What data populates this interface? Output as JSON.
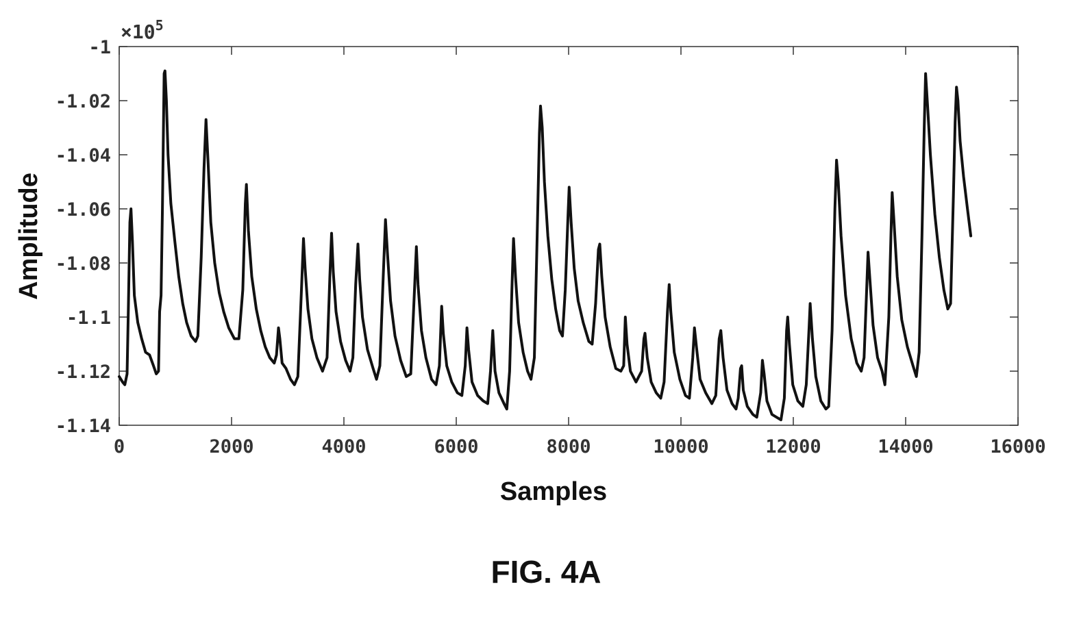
{
  "figure_caption": "FIG. 4A",
  "chart_data": {
    "type": "line",
    "title": "",
    "xlabel": "Samples",
    "ylabel": "Amplitude",
    "y_exponent_label": "×10",
    "y_exponent_power": "5",
    "xlim": [
      0,
      16000
    ],
    "ylim": [
      -1.14,
      -1.0
    ],
    "x_ticks": [
      0,
      2000,
      4000,
      6000,
      8000,
      10000,
      12000,
      14000,
      16000
    ],
    "x_tick_labels": [
      "0",
      "2000",
      "4000",
      "6000",
      "8000",
      "10000",
      "12000",
      "14000",
      "16000"
    ],
    "y_ticks": [
      -1.0,
      -1.02,
      -1.04,
      -1.06,
      -1.08,
      -1.1,
      -1.12,
      -1.14
    ],
    "y_tick_labels": [
      "-1",
      "-1.02",
      "-1.04",
      "-1.06",
      "-1.08",
      "-1.1",
      "-1.12",
      "-1.14"
    ],
    "grid": false,
    "line_color": "#111111",
    "series": [
      {
        "values": [
          [
            0,
            -1.122
          ],
          [
            60,
            -1.124
          ],
          [
            100,
            -1.125
          ],
          [
            140,
            -1.121
          ],
          [
            165,
            -1.095
          ],
          [
            190,
            -1.065
          ],
          [
            210,
            -1.06
          ],
          [
            235,
            -1.072
          ],
          [
            270,
            -1.092
          ],
          [
            330,
            -1.102
          ],
          [
            400,
            -1.108
          ],
          [
            470,
            -1.113
          ],
          [
            540,
            -1.114
          ],
          [
            610,
            -1.118
          ],
          [
            660,
            -1.121
          ],
          [
            700,
            -1.12
          ],
          [
            720,
            -1.098
          ],
          [
            745,
            -1.092
          ],
          [
            770,
            -1.06
          ],
          [
            800,
            -1.01
          ],
          [
            815,
            -1.009
          ],
          [
            840,
            -1.02
          ],
          [
            870,
            -1.04
          ],
          [
            920,
            -1.058
          ],
          [
            990,
            -1.072
          ],
          [
            1060,
            -1.085
          ],
          [
            1130,
            -1.095
          ],
          [
            1200,
            -1.102
          ],
          [
            1280,
            -1.107
          ],
          [
            1360,
            -1.109
          ],
          [
            1400,
            -1.107
          ],
          [
            1460,
            -1.078
          ],
          [
            1510,
            -1.045
          ],
          [
            1545,
            -1.027
          ],
          [
            1580,
            -1.042
          ],
          [
            1630,
            -1.065
          ],
          [
            1700,
            -1.08
          ],
          [
            1780,
            -1.091
          ],
          [
            1860,
            -1.098
          ],
          [
            1950,
            -1.104
          ],
          [
            2050,
            -1.108
          ],
          [
            2130,
            -1.108
          ],
          [
            2200,
            -1.09
          ],
          [
            2245,
            -1.058
          ],
          [
            2265,
            -1.051
          ],
          [
            2300,
            -1.068
          ],
          [
            2360,
            -1.085
          ],
          [
            2440,
            -1.097
          ],
          [
            2520,
            -1.105
          ],
          [
            2600,
            -1.111
          ],
          [
            2680,
            -1.115
          ],
          [
            2760,
            -1.117
          ],
          [
            2800,
            -1.114
          ],
          [
            2835,
            -1.104
          ],
          [
            2860,
            -1.108
          ],
          [
            2900,
            -1.117
          ],
          [
            2970,
            -1.119
          ],
          [
            3050,
            -1.123
          ],
          [
            3120,
            -1.125
          ],
          [
            3180,
            -1.122
          ],
          [
            3240,
            -1.092
          ],
          [
            3280,
            -1.071
          ],
          [
            3310,
            -1.082
          ],
          [
            3360,
            -1.097
          ],
          [
            3430,
            -1.108
          ],
          [
            3520,
            -1.115
          ],
          [
            3620,
            -1.12
          ],
          [
            3700,
            -1.115
          ],
          [
            3750,
            -1.085
          ],
          [
            3780,
            -1.069
          ],
          [
            3810,
            -1.083
          ],
          [
            3860,
            -1.098
          ],
          [
            3940,
            -1.109
          ],
          [
            4030,
            -1.116
          ],
          [
            4110,
            -1.12
          ],
          [
            4160,
            -1.115
          ],
          [
            4210,
            -1.088
          ],
          [
            4250,
            -1.073
          ],
          [
            4280,
            -1.086
          ],
          [
            4330,
            -1.1
          ],
          [
            4420,
            -1.112
          ],
          [
            4520,
            -1.119
          ],
          [
            4580,
            -1.123
          ],
          [
            4640,
            -1.118
          ],
          [
            4700,
            -1.085
          ],
          [
            4740,
            -1.064
          ],
          [
            4775,
            -1.076
          ],
          [
            4830,
            -1.094
          ],
          [
            4910,
            -1.107
          ],
          [
            5010,
            -1.116
          ],
          [
            5110,
            -1.122
          ],
          [
            5190,
            -1.121
          ],
          [
            5250,
            -1.093
          ],
          [
            5290,
            -1.074
          ],
          [
            5320,
            -1.088
          ],
          [
            5380,
            -1.105
          ],
          [
            5460,
            -1.115
          ],
          [
            5560,
            -1.123
          ],
          [
            5640,
            -1.125
          ],
          [
            5700,
            -1.118
          ],
          [
            5740,
            -1.096
          ],
          [
            5770,
            -1.106
          ],
          [
            5830,
            -1.118
          ],
          [
            5920,
            -1.124
          ],
          [
            6020,
            -1.128
          ],
          [
            6100,
            -1.129
          ],
          [
            6160,
            -1.118
          ],
          [
            6190,
            -1.104
          ],
          [
            6220,
            -1.112
          ],
          [
            6280,
            -1.124
          ],
          [
            6380,
            -1.129
          ],
          [
            6480,
            -1.131
          ],
          [
            6560,
            -1.132
          ],
          [
            6610,
            -1.12
          ],
          [
            6650,
            -1.105
          ],
          [
            6690,
            -1.12
          ],
          [
            6760,
            -1.128
          ],
          [
            6850,
            -1.132
          ],
          [
            6900,
            -1.134
          ],
          [
            6950,
            -1.12
          ],
          [
            6990,
            -1.09
          ],
          [
            7020,
            -1.071
          ],
          [
            7055,
            -1.085
          ],
          [
            7110,
            -1.102
          ],
          [
            7190,
            -1.113
          ],
          [
            7270,
            -1.12
          ],
          [
            7330,
            -1.123
          ],
          [
            7390,
            -1.115
          ],
          [
            7440,
            -1.07
          ],
          [
            7480,
            -1.032
          ],
          [
            7500,
            -1.022
          ],
          [
            7530,
            -1.03
          ],
          [
            7570,
            -1.05
          ],
          [
            7630,
            -1.07
          ],
          [
            7700,
            -1.086
          ],
          [
            7770,
            -1.097
          ],
          [
            7840,
            -1.105
          ],
          [
            7890,
            -1.107
          ],
          [
            7940,
            -1.09
          ],
          [
            7990,
            -1.062
          ],
          [
            8010,
            -1.052
          ],
          [
            8045,
            -1.065
          ],
          [
            8100,
            -1.082
          ],
          [
            8170,
            -1.094
          ],
          [
            8260,
            -1.102
          ],
          [
            8360,
            -1.109
          ],
          [
            8420,
            -1.11
          ],
          [
            8480,
            -1.095
          ],
          [
            8530,
            -1.075
          ],
          [
            8555,
            -1.073
          ],
          [
            8590,
            -1.085
          ],
          [
            8650,
            -1.1
          ],
          [
            8740,
            -1.111
          ],
          [
            8840,
            -1.119
          ],
          [
            8930,
            -1.12
          ],
          [
            8980,
            -1.118
          ],
          [
            9010,
            -1.1
          ],
          [
            9040,
            -1.11
          ],
          [
            9100,
            -1.12
          ],
          [
            9200,
            -1.124
          ],
          [
            9300,
            -1.12
          ],
          [
            9340,
            -1.108
          ],
          [
            9360,
            -1.106
          ],
          [
            9400,
            -1.115
          ],
          [
            9470,
            -1.124
          ],
          [
            9560,
            -1.128
          ],
          [
            9640,
            -1.13
          ],
          [
            9700,
            -1.124
          ],
          [
            9760,
            -1.098
          ],
          [
            9790,
            -1.088
          ],
          [
            9820,
            -1.098
          ],
          [
            9880,
            -1.113
          ],
          [
            9980,
            -1.123
          ],
          [
            10080,
            -1.129
          ],
          [
            10150,
            -1.13
          ],
          [
            10210,
            -1.115
          ],
          [
            10240,
            -1.104
          ],
          [
            10275,
            -1.111
          ],
          [
            10340,
            -1.123
          ],
          [
            10440,
            -1.128
          ],
          [
            10550,
            -1.132
          ],
          [
            10620,
            -1.129
          ],
          [
            10680,
            -1.108
          ],
          [
            10710,
            -1.105
          ],
          [
            10750,
            -1.115
          ],
          [
            10820,
            -1.127
          ],
          [
            10910,
            -1.132
          ],
          [
            10980,
            -1.134
          ],
          [
            11020,
            -1.13
          ],
          [
            11060,
            -1.119
          ],
          [
            11080,
            -1.118
          ],
          [
            11110,
            -1.127
          ],
          [
            11180,
            -1.133
          ],
          [
            11280,
            -1.136
          ],
          [
            11350,
            -1.137
          ],
          [
            11420,
            -1.128
          ],
          [
            11450,
            -1.116
          ],
          [
            11480,
            -1.121
          ],
          [
            11530,
            -1.131
          ],
          [
            11620,
            -1.136
          ],
          [
            11700,
            -1.137
          ],
          [
            11780,
            -1.138
          ],
          [
            11840,
            -1.13
          ],
          [
            11880,
            -1.105
          ],
          [
            11900,
            -1.1
          ],
          [
            11930,
            -1.11
          ],
          [
            11990,
            -1.125
          ],
          [
            12080,
            -1.131
          ],
          [
            12170,
            -1.133
          ],
          [
            12230,
            -1.125
          ],
          [
            12280,
            -1.104
          ],
          [
            12300,
            -1.095
          ],
          [
            12340,
            -1.108
          ],
          [
            12400,
            -1.122
          ],
          [
            12490,
            -1.131
          ],
          [
            12580,
            -1.134
          ],
          [
            12630,
            -1.133
          ],
          [
            12690,
            -1.105
          ],
          [
            12740,
            -1.06
          ],
          [
            12770,
            -1.042
          ],
          [
            12800,
            -1.05
          ],
          [
            12850,
            -1.07
          ],
          [
            12930,
            -1.092
          ],
          [
            13030,
            -1.108
          ],
          [
            13130,
            -1.117
          ],
          [
            13210,
            -1.12
          ],
          [
            13260,
            -1.115
          ],
          [
            13300,
            -1.093
          ],
          [
            13330,
            -1.076
          ],
          [
            13360,
            -1.085
          ],
          [
            13420,
            -1.103
          ],
          [
            13500,
            -1.115
          ],
          [
            13580,
            -1.12
          ],
          [
            13630,
            -1.125
          ],
          [
            13700,
            -1.1
          ],
          [
            13740,
            -1.068
          ],
          [
            13760,
            -1.054
          ],
          [
            13790,
            -1.064
          ],
          [
            13850,
            -1.085
          ],
          [
            13930,
            -1.101
          ],
          [
            14030,
            -1.111
          ],
          [
            14130,
            -1.118
          ],
          [
            14190,
            -1.122
          ],
          [
            14240,
            -1.113
          ],
          [
            14290,
            -1.07
          ],
          [
            14330,
            -1.03
          ],
          [
            14355,
            -1.01
          ],
          [
            14390,
            -1.022
          ],
          [
            14440,
            -1.04
          ],
          [
            14520,
            -1.062
          ],
          [
            14600,
            -1.078
          ],
          [
            14680,
            -1.09
          ],
          [
            14750,
            -1.097
          ],
          [
            14800,
            -1.095
          ],
          [
            14850,
            -1.055
          ],
          [
            14880,
            -1.028
          ],
          [
            14905,
            -1.015
          ],
          [
            14930,
            -1.02
          ],
          [
            14970,
            -1.035
          ],
          [
            15030,
            -1.048
          ],
          [
            15100,
            -1.06
          ],
          [
            15160,
            -1.07
          ]
        ]
      }
    ]
  }
}
